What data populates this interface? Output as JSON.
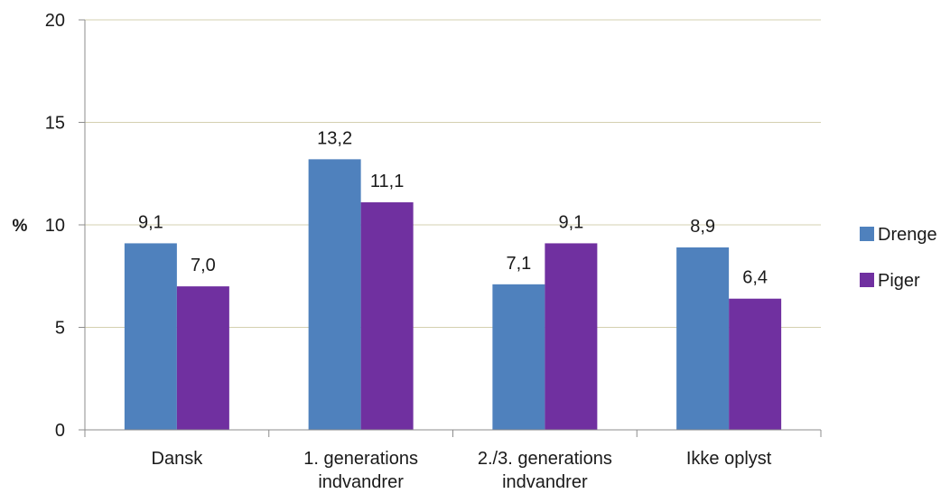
{
  "chart_data": {
    "type": "bar",
    "title": "",
    "xlabel": "",
    "ylabel": "%",
    "ylim": [
      0,
      20
    ],
    "yticks": [
      0,
      5,
      10,
      15,
      20
    ],
    "grid": true,
    "legend_position": "right",
    "categories": [
      [
        "Dansk"
      ],
      [
        "1. generations",
        "indvandrer"
      ],
      [
        "2./3. generations",
        "indvandrer"
      ],
      [
        "Ikke oplyst"
      ]
    ],
    "series": [
      {
        "name": "Drenge",
        "color": "#4f81bd",
        "values": [
          9.1,
          13.2,
          7.1,
          8.9
        ],
        "labels": [
          "9,1",
          "13,2",
          "7,1",
          "8,9"
        ]
      },
      {
        "name": "Piger",
        "color": "#7030a0",
        "values": [
          7.0,
          11.1,
          9.1,
          6.4
        ],
        "labels": [
          "7,0",
          "11,1",
          "9,1",
          "6,4"
        ]
      }
    ]
  }
}
